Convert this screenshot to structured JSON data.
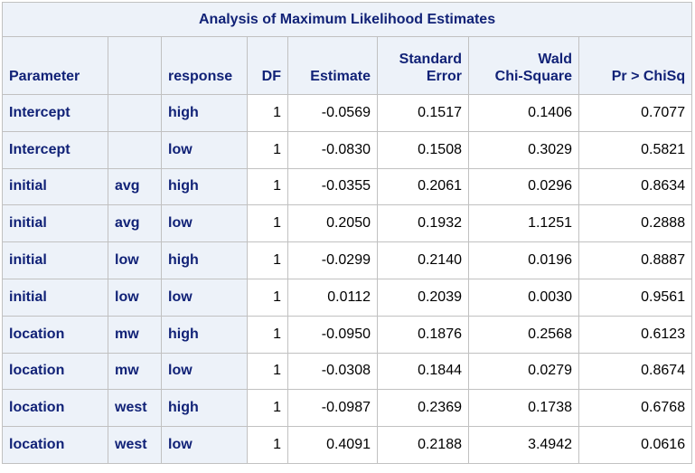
{
  "title": "Analysis of Maximum Likelihood Estimates",
  "headers": [
    {
      "line1": "",
      "line2": "Parameter"
    },
    {
      "line1": "",
      "line2": ""
    },
    {
      "line1": "",
      "line2": "response"
    },
    {
      "line1": "",
      "line2": "DF"
    },
    {
      "line1": "",
      "line2": "Estimate"
    },
    {
      "line1": "Standard",
      "line2": "Error"
    },
    {
      "line1": "Wald",
      "line2": "Chi-Square"
    },
    {
      "line1": "",
      "line2": "Pr > ChiSq"
    }
  ],
  "rows": [
    [
      "Intercept",
      "",
      "high",
      "1",
      "-0.0569",
      "0.1517",
      "0.1406",
      "0.7077"
    ],
    [
      "Intercept",
      "",
      "low",
      "1",
      "-0.0830",
      "0.1508",
      "0.3029",
      "0.5821"
    ],
    [
      "initial",
      "avg",
      "high",
      "1",
      "-0.0355",
      "0.2061",
      "0.0296",
      "0.8634"
    ],
    [
      "initial",
      "avg",
      "low",
      "1",
      "0.2050",
      "0.1932",
      "1.1251",
      "0.2888"
    ],
    [
      "initial",
      "low",
      "high",
      "1",
      "-0.0299",
      "0.2140",
      "0.0196",
      "0.8887"
    ],
    [
      "initial",
      "low",
      "low",
      "1",
      "0.0112",
      "0.2039",
      "0.0030",
      "0.9561"
    ],
    [
      "location",
      "mw",
      "high",
      "1",
      "-0.0950",
      "0.1876",
      "0.2568",
      "0.6123"
    ],
    [
      "location",
      "mw",
      "low",
      "1",
      "-0.0308",
      "0.1844",
      "0.0279",
      "0.8674"
    ],
    [
      "location",
      "west",
      "high",
      "1",
      "-0.0987",
      "0.2369",
      "0.1738",
      "0.6768"
    ],
    [
      "location",
      "west",
      "low",
      "1",
      "0.4091",
      "0.2188",
      "3.4942",
      "0.0616"
    ]
  ]
}
